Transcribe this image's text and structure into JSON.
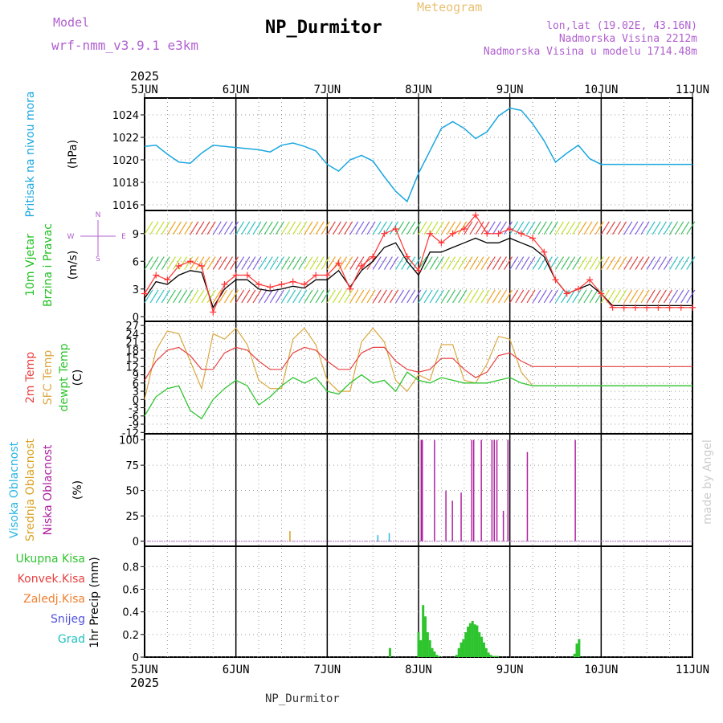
{
  "header": {
    "model_label": "Model",
    "model_name": "wrf-nmm_v3.9.1 e3km",
    "product": "Meteogram",
    "station": "NP_Durmitor",
    "lonlat": "lon,lat (19.02E, 43.16N)",
    "elevation": "Nadmorska Visina 2212m",
    "model_elevation": "Nadmorska Visina u modelu 1714.48m",
    "footer_station": "NP_Durmitor",
    "credit": "made by Angel"
  },
  "colors": {
    "pressure": "#1aa7e0",
    "wind_speed": "#ff3333",
    "wind_mean": "#000000",
    "temp2m": "#e84040",
    "sfc_temp": "#d9a840",
    "dewpt": "#2ec42e",
    "high_cloud": "#2ab6e0",
    "mid_cloud": "#d8a020",
    "low_cloud": "#b020a0",
    "precip": "#2ec42e",
    "model_label": "#b060d0",
    "product_label": "#e8c070"
  },
  "chart_data": [
    {
      "type": "line",
      "id": "pressure",
      "title": "Pritisak na nivou mora",
      "ylabel": "(hPa)",
      "ylim": [
        1015.5,
        1025.5
      ],
      "yticks": [
        1016,
        1018,
        1020,
        1022,
        1024
      ],
      "x_hours": [
        0,
        3,
        6,
        9,
        12,
        15,
        18,
        21,
        24,
        27,
        30,
        33,
        36,
        39,
        42,
        45,
        48,
        51,
        54,
        57,
        60,
        63,
        66,
        69,
        72,
        75,
        78,
        81,
        84,
        87,
        90,
        93,
        96,
        99,
        102,
        105,
        108,
        111,
        114,
        117,
        120,
        123,
        126,
        129,
        132,
        135,
        138,
        141,
        144
      ],
      "series": [
        {
          "name": "SLP",
          "values": [
            1021.2,
            1021.3,
            1020.5,
            1019.8,
            1019.7,
            1020.6,
            1021.3,
            1021.2,
            1021.1,
            1021.0,
            1020.9,
            1020.7,
            1021.3,
            1021.5,
            1021.2,
            1020.8,
            1019.6,
            1019.0,
            1020.0,
            1020.4,
            1019.9,
            1018.5,
            1017.2,
            1016.3,
            1018.8,
            1020.8,
            1022.8,
            1023.4,
            1022.8,
            1021.9,
            1022.5,
            1023.9,
            1024.6,
            1024.4,
            1023.2,
            1021.7,
            1019.8,
            1020.6,
            1021.3,
            1020.1,
            1019.6,
            1019.6,
            1019.6,
            1019.6,
            1019.6,
            1019.6,
            1019.6,
            1019.6,
            1019.6
          ]
        }
      ]
    },
    {
      "type": "line",
      "id": "wind",
      "title": "10m Vjetar Brzina i Pravac",
      "ylabel": "(m/s)",
      "ylim": [
        0,
        11
      ],
      "yticks": [
        0,
        3,
        6,
        9
      ],
      "compass": [
        "N",
        "E",
        "S",
        "W"
      ],
      "x_hours": [
        0,
        3,
        6,
        9,
        12,
        15,
        18,
        21,
        24,
        27,
        30,
        33,
        36,
        39,
        42,
        45,
        48,
        51,
        54,
        57,
        60,
        63,
        66,
        69,
        72,
        75,
        78,
        81,
        84,
        87,
        90,
        93,
        96,
        99,
        102,
        105,
        108,
        111,
        114,
        117,
        120,
        123,
        126,
        129,
        132,
        135,
        138,
        141,
        144
      ],
      "series": [
        {
          "name": "Brzina",
          "values": [
            2.5,
            4.5,
            4.0,
            5.5,
            6.0,
            5.5,
            0.5,
            3.5,
            4.5,
            4.5,
            3.5,
            3.2,
            3.5,
            3.8,
            3.5,
            4.5,
            4.5,
            5.8,
            3.0,
            5.5,
            6.5,
            9.0,
            9.5,
            6.5,
            5.0,
            9.0,
            8.0,
            9.0,
            9.5,
            11.0,
            9.0,
            9.0,
            9.5,
            9.0,
            8.5,
            7.0,
            4.0,
            2.5,
            3.0,
            4.0,
            2.5,
            1.0,
            1.0,
            1.0,
            1.0,
            1.0,
            1.0,
            1.0,
            1.0
          ]
        },
        {
          "name": "Srednja",
          "values": [
            2.0,
            3.8,
            3.5,
            4.5,
            5.0,
            4.8,
            1.0,
            3.0,
            4.0,
            4.0,
            3.0,
            2.8,
            3.0,
            3.3,
            3.1,
            4.0,
            4.0,
            5.0,
            3.2,
            5.0,
            6.0,
            7.5,
            8.0,
            6.0,
            4.5,
            7.0,
            7.0,
            7.5,
            8.0,
            8.5,
            8.0,
            8.0,
            8.5,
            8.0,
            7.5,
            6.5,
            4.0,
            2.5,
            3.0,
            3.5,
            2.5,
            1.2,
            1.2,
            1.2,
            1.2,
            1.2,
            1.2,
            1.2,
            1.2
          ]
        }
      ]
    },
    {
      "type": "line",
      "id": "temperature",
      "title": "2m Temp / SFC Temp / dewpt Temp",
      "ylabel": "(C)",
      "ylim": [
        -12,
        28
      ],
      "yticks": [
        -12,
        -9,
        -6,
        -3,
        0,
        3,
        6,
        9,
        12,
        15,
        18,
        21,
        24,
        27
      ],
      "x_hours": [
        0,
        3,
        6,
        9,
        12,
        15,
        18,
        21,
        24,
        27,
        30,
        33,
        36,
        39,
        42,
        45,
        48,
        51,
        54,
        57,
        60,
        63,
        66,
        69,
        72,
        75,
        78,
        81,
        84,
        87,
        90,
        93,
        96,
        99,
        102,
        105,
        108,
        111,
        114,
        117,
        120,
        123,
        126,
        129,
        132,
        135,
        138,
        141,
        144
      ],
      "series": [
        {
          "name": "2m Temp",
          "values": [
            7,
            14,
            18,
            19,
            16,
            11,
            11,
            17,
            19,
            18,
            14,
            11,
            11,
            17,
            19,
            18,
            14,
            11,
            11,
            17,
            19,
            19,
            14,
            11,
            10,
            11,
            15,
            15,
            11,
            8,
            10,
            16,
            17,
            14,
            12,
            12,
            12,
            12,
            12,
            12,
            12,
            12,
            12,
            12,
            12,
            12,
            12,
            12,
            12
          ]
        },
        {
          "name": "SFC Temp",
          "values": [
            0,
            18,
            25,
            24,
            14,
            4,
            24,
            22,
            26,
            20,
            7,
            4,
            4,
            22,
            26,
            20,
            7,
            3,
            3,
            21,
            26,
            21,
            7,
            3,
            9,
            7,
            20,
            20,
            7,
            6,
            13,
            23,
            22,
            10,
            5,
            5,
            5,
            5,
            5,
            5,
            5,
            5,
            5,
            5,
            5,
            5,
            5,
            5,
            5
          ]
        },
        {
          "name": "dewpt Temp",
          "values": [
            -6,
            1,
            4,
            5,
            -4,
            -7,
            0,
            4,
            7,
            5,
            -2,
            1,
            5,
            8,
            6,
            8,
            3,
            2,
            6,
            9,
            6,
            7,
            3,
            10,
            7,
            6,
            8,
            7,
            6,
            6,
            6,
            7,
            8,
            6,
            5,
            5,
            5,
            5,
            5,
            5,
            5,
            5,
            5,
            5,
            5,
            5,
            5,
            5,
            5
          ]
        }
      ]
    },
    {
      "type": "bar",
      "id": "cloud",
      "title": "Visoka / Srednja / Niska Oblacnost",
      "ylabel": "(%)",
      "ylim": [
        0,
        100
      ],
      "yticks": [
        0,
        25,
        50,
        75,
        100
      ],
      "series": [
        {
          "name": "Niska Oblacnost",
          "hours": [
            72.7,
            73.0,
            76.2,
            79.2,
            80.9,
            83.2,
            86.0,
            86.5,
            88.5,
            91.3,
            91.9,
            92.6,
            94.3,
            95.5,
            100.6,
            113.2
          ],
          "values": [
            100,
            100,
            100,
            50,
            40,
            48,
            100,
            100,
            100,
            100,
            100,
            100,
            30,
            100,
            88,
            100
          ]
        },
        {
          "name": "Srednja Oblacnost",
          "hours": [
            38.2
          ],
          "values": [
            10
          ]
        },
        {
          "name": "Visoka Oblacnost",
          "hours": [
            61.3,
            64.3
          ],
          "values": [
            6,
            8
          ]
        }
      ]
    },
    {
      "type": "bar",
      "id": "precip",
      "title": "1hr Precip",
      "ylabel": "(mm)",
      "ylim": [
        0,
        1
      ],
      "yticks": [
        0,
        0.2,
        0.4,
        0.6,
        0.8
      ],
      "legend": [
        "Ukupna Kisa",
        "Konvek.Kisa",
        "Zaledj.Kisa",
        "Snijeg",
        "Grad"
      ],
      "series": [
        {
          "name": "Ukupna Kisa",
          "hours": [
            64.5,
            72.0,
            72.6,
            73.2,
            73.8,
            74.4,
            75.0,
            75.6,
            76.2,
            76.8,
            77.4,
            82.0,
            82.6,
            83.2,
            83.8,
            84.4,
            85.0,
            85.6,
            86.2,
            86.8,
            87.4,
            88.0,
            88.6,
            89.2,
            89.8,
            90.4,
            91.0,
            91.6,
            92.2,
            92.8,
            113.0,
            113.6,
            114.2
          ],
          "values": [
            0.08,
            0.22,
            0.15,
            0.46,
            0.36,
            0.22,
            0.15,
            0.08,
            0.05,
            0.02,
            0.01,
            0.02,
            0.08,
            0.13,
            0.16,
            0.22,
            0.27,
            0.3,
            0.32,
            0.29,
            0.28,
            0.22,
            0.18,
            0.13,
            0.08,
            0.04,
            0.02,
            0.01,
            0.01,
            0.01,
            0.03,
            0.12,
            0.16
          ]
        }
      ]
    }
  ],
  "time_axis": {
    "year_label": "2025",
    "labels": [
      "5JUN",
      "6JUN",
      "7JUN",
      "8JUN",
      "9JUN",
      "10JUN",
      "11JUN"
    ]
  }
}
